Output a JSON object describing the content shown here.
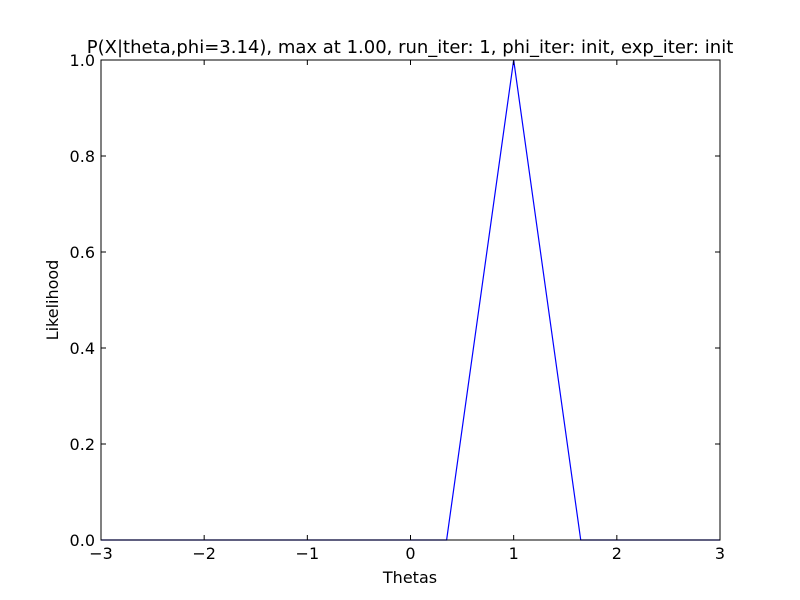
{
  "chart_data": {
    "type": "line",
    "title": "P(X|theta,phi=3.14), max at 1.00, run_iter: 1, phi_iter: init, exp_iter: init",
    "xlabel": "Thetas",
    "ylabel": "Likelihood",
    "xlim": [
      -3,
      3
    ],
    "ylim": [
      0,
      1.0
    ],
    "xticks": [
      -3,
      -2,
      -1,
      0,
      1,
      2,
      3
    ],
    "xtick_labels": [
      "−3",
      "−2",
      "−1",
      "0",
      "1",
      "2",
      "3"
    ],
    "yticks": [
      0.0,
      0.2,
      0.4,
      0.6,
      0.8,
      1.0
    ],
    "ytick_labels": [
      "0.0",
      "0.2",
      "0.4",
      "0.6",
      "0.8",
      "1.0"
    ],
    "grid": false,
    "series": [
      {
        "color": "#0000ff",
        "x": [
          -3.0,
          0.35,
          1.0,
          1.65,
          3.0
        ],
        "y": [
          0.0,
          0.0,
          1.0,
          0.0,
          0.0
        ]
      }
    ]
  }
}
